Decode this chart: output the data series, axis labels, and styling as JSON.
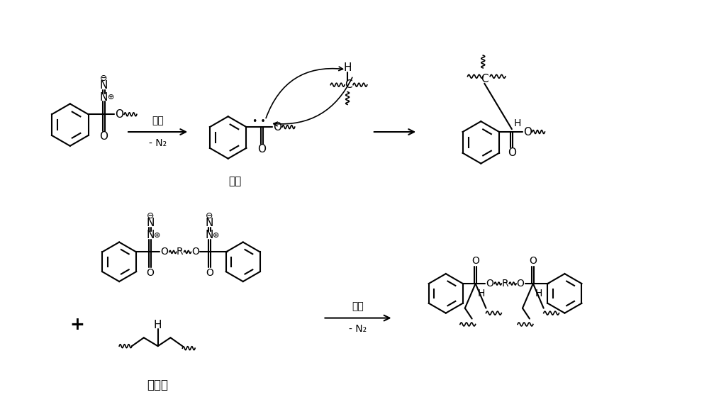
{
  "background_color": "#ffffff",
  "figure_width": 10.0,
  "figure_height": 5.91,
  "dpi": 100,
  "label_jiare": "加热",
  "label_n2": "- N₂",
  "label_kabin": "卡宾",
  "label_juyi": "聚乙烯",
  "plus": "+",
  "font_zh": "SimHei"
}
